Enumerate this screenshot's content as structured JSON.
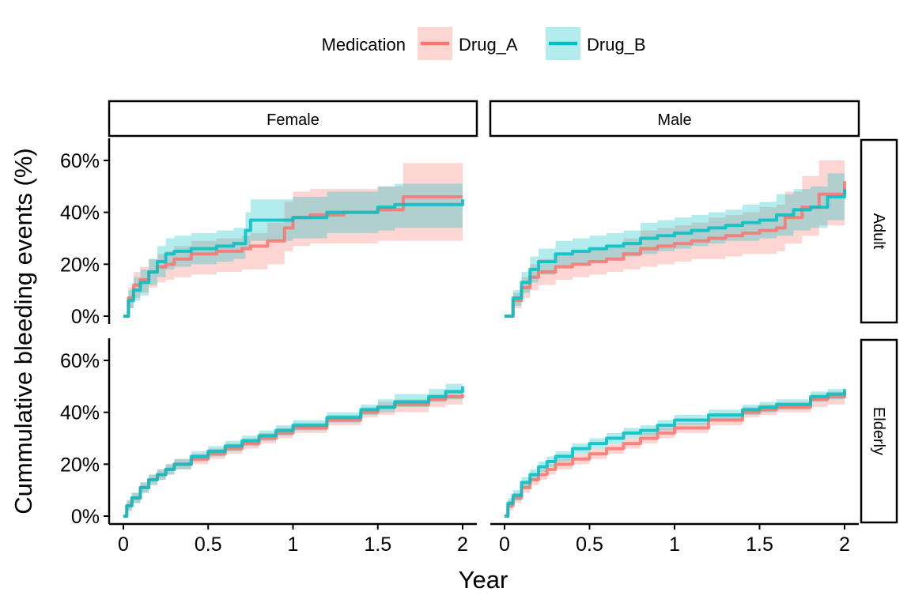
{
  "chart_data": {
    "type": "line",
    "subtype": "cumulative-incidence-step-with-ci-bands",
    "xlabel": "Year",
    "ylabel": "Cummulative bleeding events (%)",
    "xlim": [
      0,
      2
    ],
    "ylim": [
      0,
      60
    ],
    "x_ticks": [
      0,
      0.5,
      1,
      1.5,
      2
    ],
    "x_tick_labels": [
      "0",
      "0.5",
      "1",
      "1.5",
      "2"
    ],
    "y_ticks": [
      0,
      20,
      40,
      60
    ],
    "y_tick_labels": [
      "0%",
      "20%",
      "40%",
      "60%"
    ],
    "grid": false,
    "legend": {
      "title": "Medication",
      "position": "top",
      "entries": [
        "Drug_A",
        "Drug_B"
      ]
    },
    "colors": {
      "Drug_A": "#F8766D",
      "Drug_B": "#00BFC4"
    },
    "facet_cols": [
      "Female",
      "Male"
    ],
    "facet_rows": [
      "Adult",
      "Elderly"
    ],
    "panels": [
      {
        "col": "Female",
        "row": "Adult",
        "series": [
          {
            "name": "Drug_A",
            "x": [
              0,
              0.03,
              0.06,
              0.1,
              0.15,
              0.2,
              0.25,
              0.3,
              0.4,
              0.55,
              0.7,
              0.75,
              0.85,
              0.95,
              1.0,
              1.1,
              1.3,
              1.5,
              1.6,
              1.65,
              1.8,
              2.0
            ],
            "y": [
              0,
              7,
              12,
              14,
              17,
              19,
              20,
              22,
              24,
              25,
              26,
              27,
              29,
              34,
              38,
              39,
              40,
              41,
              41,
              46,
              46,
              46
            ],
            "lower": [
              0,
              3,
              7,
              9,
              11,
              13,
              14,
              15,
              16,
              17,
              18,
              18,
              20,
              25,
              27,
              28,
              28,
              29,
              29,
              29,
              29,
              29
            ],
            "upper": [
              0,
              11,
              17,
              19,
              22,
              24,
              25,
              27,
              29,
              30,
              31,
              32,
              36,
              44,
              48,
              49,
              49,
              50,
              50,
              59,
              59,
              59
            ]
          },
          {
            "name": "Drug_B",
            "x": [
              0,
              0.03,
              0.06,
              0.1,
              0.15,
              0.2,
              0.25,
              0.3,
              0.4,
              0.55,
              0.65,
              0.72,
              0.75,
              0.8,
              1.0,
              1.2,
              1.4,
              1.5,
              1.6,
              1.8,
              1.95,
              2.0
            ],
            "y": [
              0,
              6,
              10,
              13,
              17,
              21,
              24,
              25,
              26,
              27,
              28,
              33,
              37,
              37,
              38,
              40,
              40,
              42,
              43,
              43,
              43,
              45
            ],
            "lower": [
              0,
              3,
              6,
              8,
              12,
              15,
              18,
              19,
              20,
              21,
              22,
              26,
              29,
              29,
              30,
              32,
              32,
              33,
              34,
              34,
              34,
              34
            ],
            "upper": [
              0,
              10,
              15,
              18,
              22,
              27,
              30,
              31,
              32,
              33,
              34,
              40,
              45,
              45,
              46,
              48,
              48,
              50,
              51,
              51,
              51,
              55
            ]
          }
        ]
      },
      {
        "col": "Male",
        "row": "Adult",
        "series": [
          {
            "name": "Drug_A",
            "x": [
              0,
              0.05,
              0.1,
              0.15,
              0.2,
              0.3,
              0.4,
              0.5,
              0.6,
              0.7,
              0.8,
              0.9,
              1.0,
              1.1,
              1.2,
              1.3,
              1.4,
              1.5,
              1.6,
              1.65,
              1.75,
              1.85,
              2.0
            ],
            "y": [
              0,
              6,
              11,
              15,
              17,
              19,
              20,
              21,
              22,
              24,
              26,
              27,
              28,
              29,
              30,
              31,
              32,
              33,
              34,
              38,
              42,
              47,
              52
            ],
            "lower": [
              0,
              3,
              7,
              10,
              12,
              14,
              15,
              16,
              17,
              18,
              19,
              20,
              21,
              22,
              22,
              23,
              24,
              24,
              25,
              28,
              31,
              35,
              39
            ],
            "upper": [
              0,
              9,
              15,
              20,
              22,
              24,
              25,
              26,
              27,
              30,
              33,
              34,
              35,
              36,
              38,
              39,
              40,
              42,
              43,
              48,
              54,
              60,
              64
            ]
          },
          {
            "name": "Drug_B",
            "x": [
              0,
              0.05,
              0.1,
              0.15,
              0.2,
              0.3,
              0.4,
              0.5,
              0.6,
              0.7,
              0.8,
              0.9,
              1.0,
              1.1,
              1.2,
              1.3,
              1.4,
              1.5,
              1.6,
              1.7,
              1.8,
              1.9,
              2.0
            ],
            "y": [
              0,
              7,
              13,
              18,
              21,
              24,
              25,
              26,
              27,
              28,
              30,
              31,
              32,
              33,
              34,
              35,
              36,
              37,
              39,
              41,
              42,
              46,
              49
            ],
            "lower": [
              0,
              4,
              9,
              13,
              16,
              19,
              20,
              21,
              22,
              23,
              24,
              25,
              26,
              27,
              28,
              29,
              29,
              30,
              31,
              33,
              34,
              37,
              40
            ],
            "upper": [
              0,
              10,
              17,
              23,
              26,
              29,
              30,
              31,
              32,
              33,
              36,
              37,
              38,
              39,
              40,
              41,
              43,
              44,
              47,
              49,
              50,
              55,
              58
            ]
          }
        ]
      },
      {
        "col": "Female",
        "row": "Elderly",
        "series": [
          {
            "name": "Drug_A",
            "x": [
              0,
              0.02,
              0.05,
              0.1,
              0.15,
              0.2,
              0.25,
              0.3,
              0.4,
              0.5,
              0.6,
              0.7,
              0.8,
              0.9,
              1.0,
              1.2,
              1.4,
              1.5,
              1.6,
              1.8,
              1.9,
              2.0
            ],
            "y": [
              0,
              4,
              7,
              11,
              14,
              16,
              18,
              20,
              22,
              24,
              26,
              28,
              30,
              32,
              34,
              37,
              40,
              42,
              43,
              45,
              46,
              47
            ],
            "lower": [
              0,
              2,
              5,
              9,
              12,
              14,
              16,
              18,
              20,
              22,
              24,
              26,
              28,
              30,
              32,
              35,
              38,
              39,
              40,
              42,
              43,
              44
            ],
            "upper": [
              0,
              6,
              9,
              13,
              16,
              18,
              20,
              22,
              24,
              26,
              28,
              30,
              32,
              34,
              36,
              39,
              42,
              44,
              45,
              47,
              48,
              49
            ]
          },
          {
            "name": "Drug_B",
            "x": [
              0,
              0.02,
              0.05,
              0.1,
              0.15,
              0.2,
              0.25,
              0.3,
              0.4,
              0.5,
              0.6,
              0.7,
              0.8,
              0.9,
              1.0,
              1.2,
              1.4,
              1.5,
              1.6,
              1.8,
              1.9,
              2.0
            ],
            "y": [
              0,
              4,
              7,
              11,
              14,
              16,
              18,
              20,
              23,
              25,
              27,
              29,
              31,
              33,
              35,
              38,
              41,
              42,
              44,
              46,
              48,
              50
            ],
            "lower": [
              0,
              2,
              5,
              9,
              12,
              14,
              16,
              18,
              21,
              23,
              25,
              27,
              29,
              31,
              33,
              36,
              39,
              40,
              42,
              44,
              45,
              47
            ],
            "upper": [
              0,
              6,
              9,
              13,
              16,
              18,
              20,
              22,
              25,
              27,
              29,
              31,
              33,
              35,
              37,
              40,
              43,
              45,
              47,
              49,
              51,
              53
            ]
          }
        ]
      },
      {
        "col": "Male",
        "row": "Elderly",
        "series": [
          {
            "name": "Drug_A",
            "x": [
              0,
              0.02,
              0.05,
              0.1,
              0.15,
              0.2,
              0.25,
              0.3,
              0.4,
              0.5,
              0.6,
              0.7,
              0.8,
              0.9,
              1.0,
              1.2,
              1.4,
              1.5,
              1.6,
              1.8,
              1.9,
              2.0
            ],
            "y": [
              0,
              4,
              7,
              11,
              14,
              16,
              18,
              20,
              22,
              24,
              26,
              28,
              30,
              32,
              34,
              37,
              40,
              41,
              42,
              45,
              46,
              48
            ],
            "lower": [
              0,
              2,
              5,
              9,
              12,
              14,
              16,
              18,
              20,
              22,
              24,
              26,
              28,
              30,
              32,
              35,
              38,
              39,
              40,
              42,
              43,
              45
            ],
            "upper": [
              0,
              6,
              9,
              13,
              16,
              18,
              20,
              22,
              24,
              26,
              28,
              30,
              32,
              34,
              36,
              39,
              42,
              43,
              44,
              47,
              48,
              50
            ]
          },
          {
            "name": "Drug_B",
            "x": [
              0,
              0.02,
              0.05,
              0.1,
              0.15,
              0.2,
              0.25,
              0.3,
              0.4,
              0.5,
              0.6,
              0.7,
              0.8,
              0.9,
              1.0,
              1.2,
              1.4,
              1.5,
              1.6,
              1.8,
              1.9,
              2.0
            ],
            "y": [
              0,
              5,
              8,
              13,
              16,
              19,
              21,
              23,
              26,
              28,
              30,
              32,
              33,
              35,
              37,
              39,
              41,
              42,
              43,
              46,
              47,
              49
            ],
            "lower": [
              0,
              3,
              6,
              11,
              14,
              17,
              19,
              21,
              24,
              26,
              28,
              30,
              31,
              33,
              35,
              37,
              39,
              40,
              41,
              44,
              45,
              47
            ],
            "upper": [
              0,
              7,
              10,
              15,
              18,
              21,
              23,
              25,
              28,
              30,
              32,
              34,
              35,
              37,
              39,
              41,
              43,
              44,
              45,
              48,
              49,
              51
            ]
          }
        ]
      }
    ]
  }
}
